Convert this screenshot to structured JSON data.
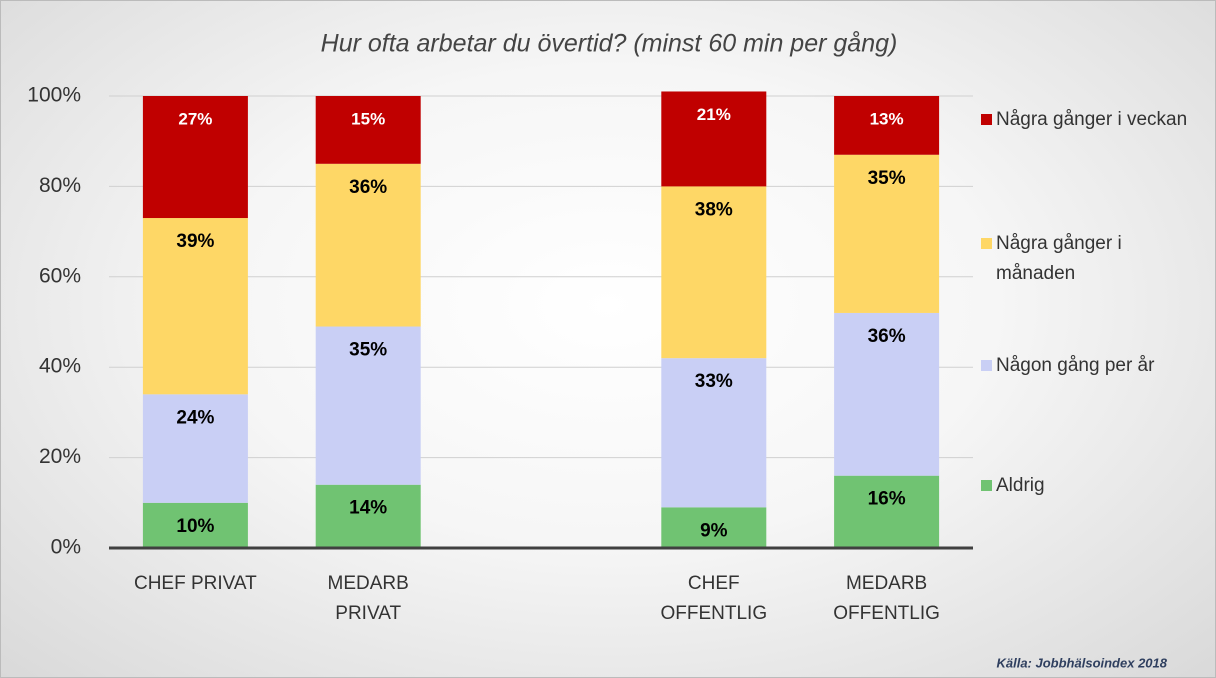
{
  "chart_data": {
    "type": "stacked_bar",
    "title": "Hur ofta arbetar du övertid? (minst 60 min per gång)",
    "source": "Källa: Jobbhälsoindex 2018",
    "categories": [
      "CHEF PRIVAT",
      "MEDARB PRIVAT",
      null,
      "CHEF OFFENTLIG",
      "MEDARB OFFENTLIG"
    ],
    "series": [
      {
        "name": "Aldrig",
        "color": "#70c372",
        "label_color": "#000000",
        "values": [
          10,
          14,
          null,
          9,
          16
        ],
        "value_labels": [
          "10%",
          "14%",
          null,
          "9%",
          "16%"
        ]
      },
      {
        "name": "Någon gång per år",
        "color": "#c9cff5",
        "label_color": "#000000",
        "values": [
          24,
          35,
          null,
          33,
          36
        ],
        "value_labels": [
          "24%",
          "35%",
          null,
          "33%",
          "36%"
        ]
      },
      {
        "name": "Några gånger i månaden",
        "color": "#fed766",
        "label_color": "#000000",
        "values": [
          39,
          36,
          null,
          38,
          35
        ],
        "value_labels": [
          "39%",
          "36%",
          null,
          "38%",
          "35%"
        ]
      },
      {
        "name": "Några gånger i veckan",
        "color": "#c00000",
        "label_color": "#ffffff",
        "values": [
          27,
          15,
          null,
          21,
          13
        ],
        "value_labels": [
          "27%",
          "15%",
          null,
          "21%",
          "13%"
        ]
      }
    ],
    "ylim": [
      0,
      100
    ],
    "yticks": [
      {
        "value": 0,
        "label": "0%"
      },
      {
        "value": 20,
        "label": "20%"
      },
      {
        "value": 40,
        "label": "40%"
      },
      {
        "value": 60,
        "label": "60%"
      },
      {
        "value": 80,
        "label": "80%"
      },
      {
        "value": 100,
        "label": "100%"
      }
    ],
    "grid": true,
    "legend": "right"
  }
}
